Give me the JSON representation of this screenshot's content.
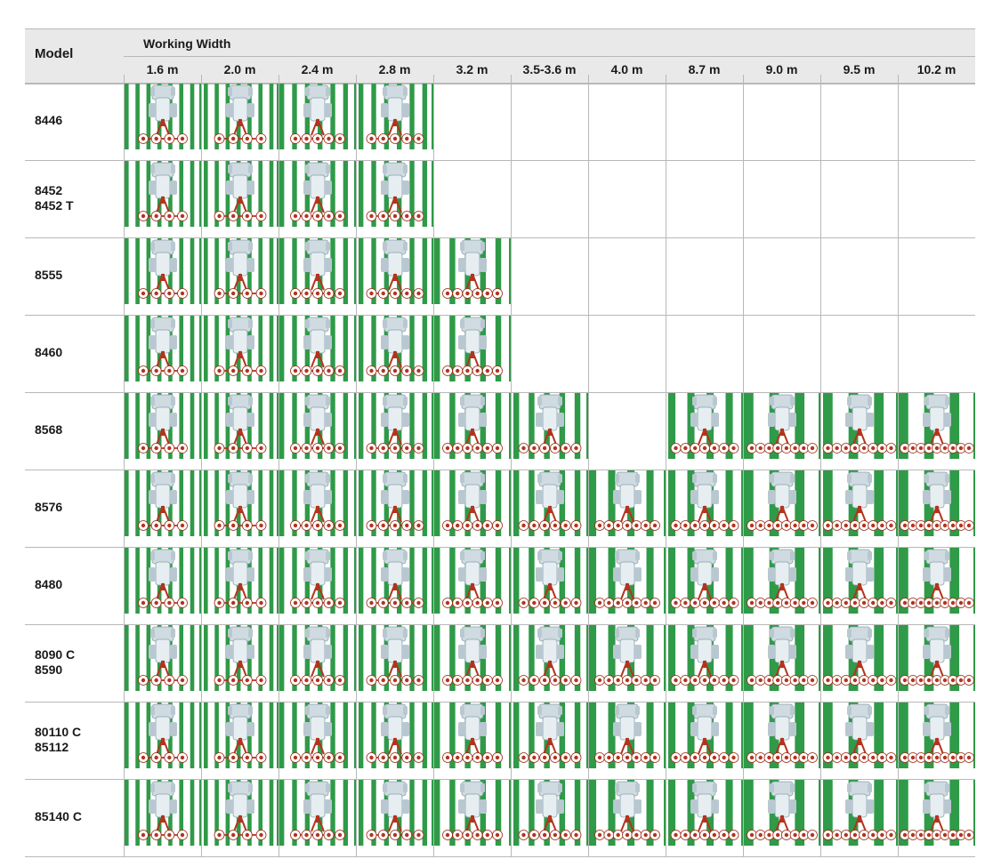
{
  "header": {
    "model_label": "Model",
    "working_width_label": "Working Width"
  },
  "widths": [
    "1.6 m",
    "2.0 m",
    "2.4 m",
    "2.8 m",
    "3.2 m",
    "3.5-3.6 m",
    "4.0 m",
    "8.7 m",
    "9.0 m",
    "9.5 m",
    "10.2 m"
  ],
  "models": [
    {
      "lines": [
        "8446"
      ],
      "available": [
        true,
        true,
        true,
        true,
        false,
        false,
        false,
        false,
        false,
        false,
        false
      ]
    },
    {
      "lines": [
        "8452",
        "8452 T"
      ],
      "available": [
        true,
        true,
        true,
        true,
        false,
        false,
        false,
        false,
        false,
        false,
        false
      ]
    },
    {
      "lines": [
        "8555"
      ],
      "available": [
        true,
        true,
        true,
        true,
        true,
        false,
        false,
        false,
        false,
        false,
        false
      ]
    },
    {
      "lines": [
        "8460"
      ],
      "available": [
        true,
        true,
        true,
        true,
        true,
        false,
        false,
        false,
        false,
        false,
        false
      ]
    },
    {
      "lines": [
        "8568"
      ],
      "available": [
        true,
        true,
        true,
        true,
        true,
        true,
        false,
        true,
        true,
        true,
        true
      ]
    },
    {
      "lines": [
        "8576"
      ],
      "available": [
        true,
        true,
        true,
        true,
        true,
        true,
        true,
        true,
        true,
        true,
        true
      ]
    },
    {
      "lines": [
        "8480"
      ],
      "available": [
        true,
        true,
        true,
        true,
        true,
        true,
        true,
        true,
        true,
        true,
        true
      ]
    },
    {
      "lines": [
        "8090 C",
        "8590"
      ],
      "available": [
        true,
        true,
        true,
        true,
        true,
        true,
        true,
        true,
        true,
        true,
        true
      ]
    },
    {
      "lines": [
        "80110 C",
        "85112"
      ],
      "available": [
        true,
        true,
        true,
        true,
        true,
        true,
        true,
        true,
        true,
        true,
        true
      ]
    },
    {
      "lines": [
        "85140 C"
      ],
      "available": [
        true,
        true,
        true,
        true,
        true,
        true,
        true,
        true,
        true,
        true,
        true
      ]
    }
  ],
  "colors": {
    "row_stripe": "#2f9a48",
    "rake_arm": "#b3341e",
    "tractor_body": "#e7eef2",
    "header_bg": "#e9e9e9",
    "grid_line": "#b8b8b8"
  },
  "icons": {
    "configuration": "tractor-with-rotor-rake-icon"
  }
}
